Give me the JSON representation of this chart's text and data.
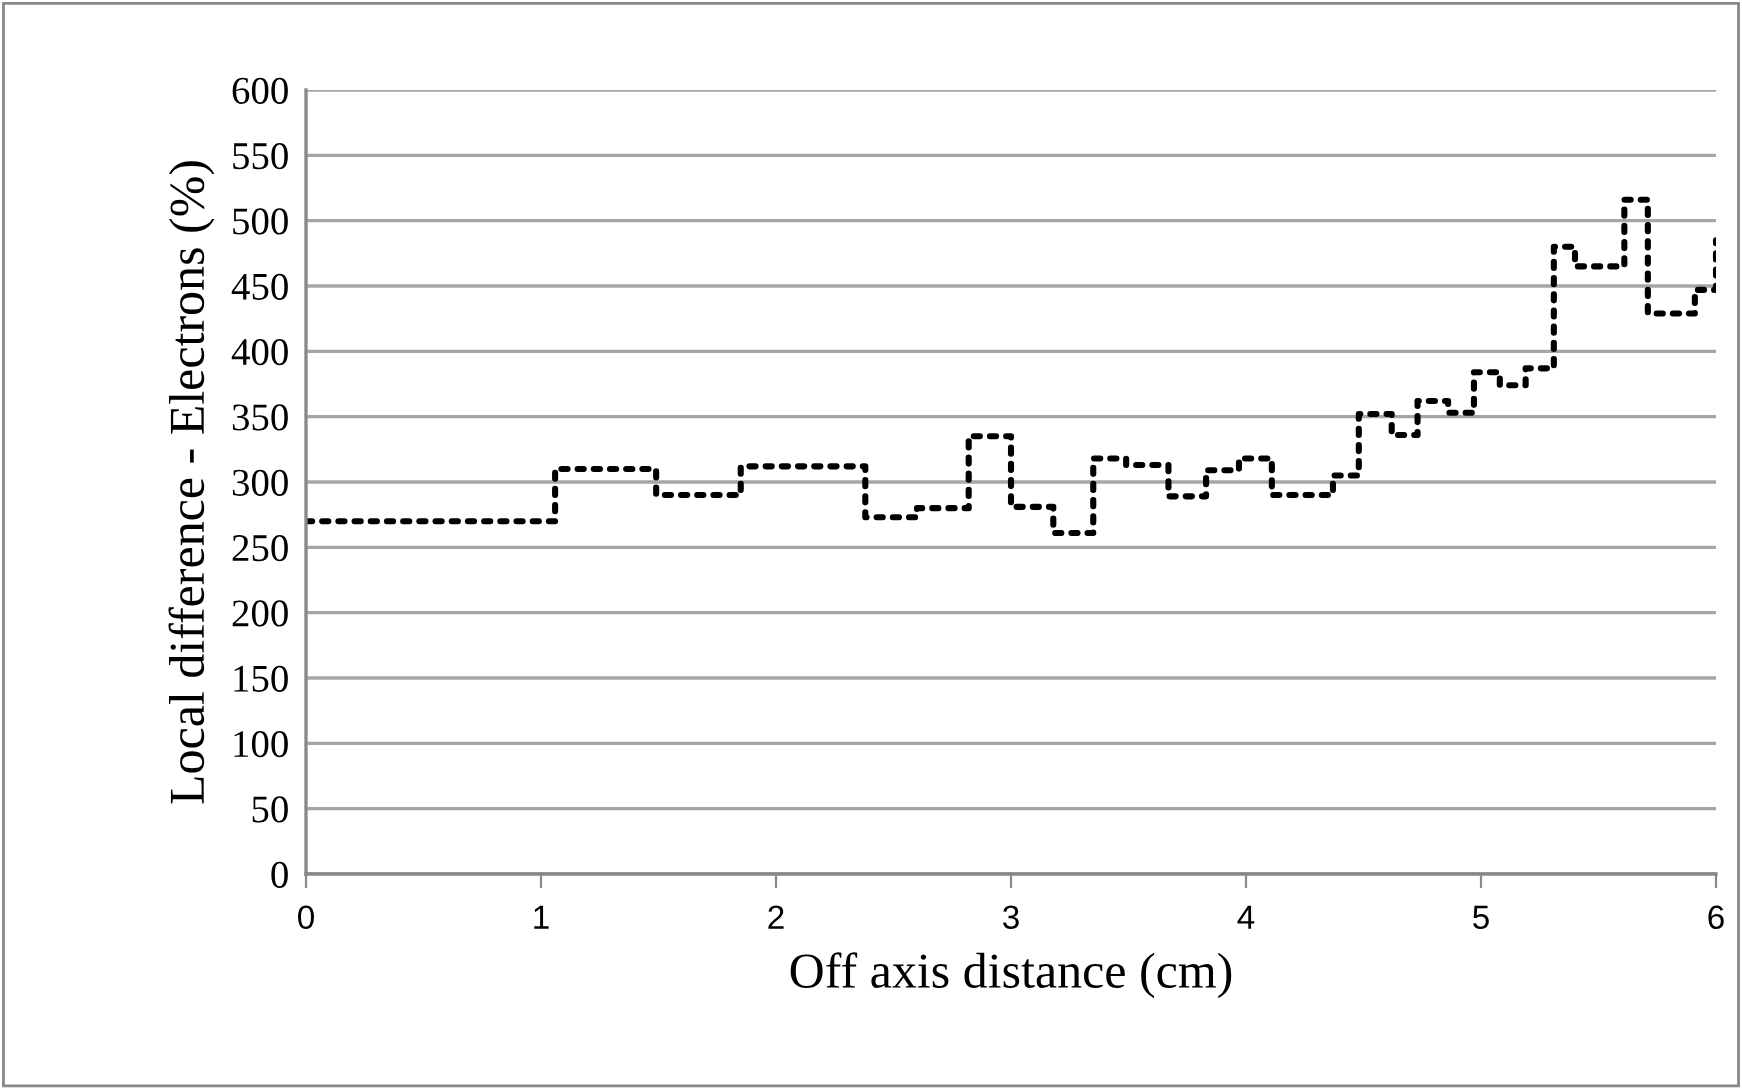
{
  "chart_data": {
    "type": "line",
    "xlabel": "Off axis distance (cm)",
    "ylabel": "Local difference - Electrons (%)",
    "xlim": [
      0,
      6
    ],
    "xticks": [
      0,
      1,
      2,
      3,
      4,
      5,
      6
    ],
    "ylim": [
      0,
      600
    ],
    "yticks": [
      0,
      50,
      100,
      150,
      200,
      250,
      300,
      350,
      400,
      450,
      500,
      550,
      600
    ],
    "grid": "y",
    "marker": "none",
    "line_style": "dotted",
    "series": [
      {
        "color": "#000000",
        "x": [
          0,
          1.06,
          1.06,
          1.49,
          1.49,
          1.85,
          1.85,
          2.38,
          2.38,
          2.6,
          2.6,
          2.82,
          2.82,
          3.0,
          3.0,
          3.18,
          3.18,
          3.35,
          3.35,
          3.49,
          3.49,
          3.67,
          3.67,
          3.83,
          3.83,
          3.97,
          3.97,
          4.11,
          4.11,
          4.37,
          4.37,
          4.48,
          4.48,
          4.62,
          4.62,
          4.73,
          4.73,
          4.86,
          4.86,
          4.97,
          4.97,
          5.08,
          5.08,
          5.19,
          5.19,
          5.31,
          5.31,
          5.4,
          5.4,
          5.61,
          5.61,
          5.71,
          5.71,
          5.91,
          5.91,
          6.0,
          6.0
        ],
        "values": [
          270,
          270,
          310,
          310,
          290,
          290,
          312,
          312,
          273,
          273,
          280,
          280,
          335,
          335,
          281,
          281,
          261,
          261,
          318,
          318,
          313,
          313,
          289,
          289,
          309,
          309,
          318,
          318,
          290,
          290,
          305,
          305,
          352,
          352,
          336,
          336,
          362,
          362,
          353,
          353,
          384,
          384,
          374,
          374,
          387,
          387,
          480,
          480,
          465,
          465,
          516,
          516,
          429,
          429,
          447,
          447,
          485
        ]
      }
    ]
  }
}
